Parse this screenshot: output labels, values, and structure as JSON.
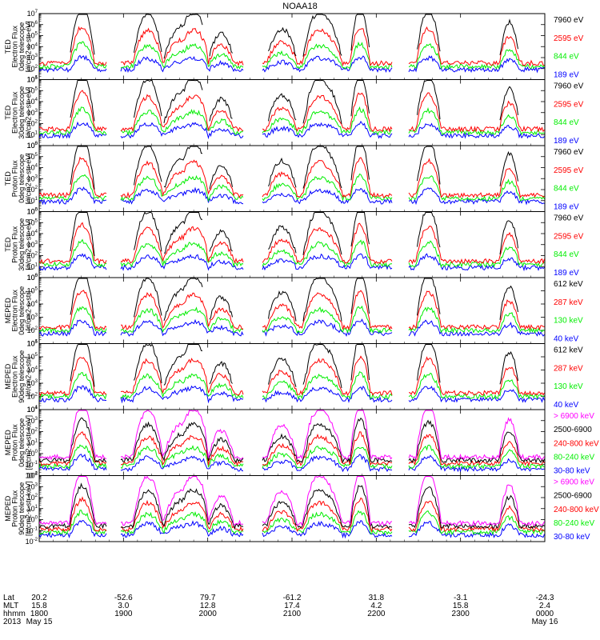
{
  "title": "NOAA18",
  "colors": {
    "black": "#000000",
    "red": "#ff0000",
    "green": "#00ee00",
    "blue": "#0000ff",
    "magenta": "#ff00ff"
  },
  "chart_data": [
    {
      "type": "line",
      "panel": 1,
      "ylabel": [
        "TED",
        "Electron Flux",
        "0deg telescope",
        "[#/cm2-s-str-eV]"
      ],
      "ylog": true,
      "ylim_exp": [
        1,
        7
      ],
      "series": [
        {
          "name": "7960 eV",
          "color": "#000000"
        },
        {
          "name": "2595 eV",
          "color": "#ff0000"
        },
        {
          "name": "844 eV",
          "color": "#00ee00"
        },
        {
          "name": "189 eV",
          "color": "#0000ff"
        }
      ]
    },
    {
      "type": "line",
      "panel": 2,
      "ylabel": [
        "TED",
        "Electron Flux",
        "30deg telescope",
        "[#/cm2-s-str-eV]"
      ],
      "ylog": true,
      "ylim_exp": [
        0,
        6
      ],
      "series": [
        {
          "name": "7960 eV",
          "color": "#000000"
        },
        {
          "name": "2595 eV",
          "color": "#ff0000"
        },
        {
          "name": "844 eV",
          "color": "#00ee00"
        },
        {
          "name": "189 eV",
          "color": "#0000ff"
        }
      ]
    },
    {
      "type": "line",
      "panel": 3,
      "ylabel": [
        "TED",
        "Proton Flux",
        "0deg telescope",
        "[#/cm2-s-str-eV]"
      ],
      "ylog": true,
      "ylim_exp": [
        0,
        6
      ],
      "series": [
        {
          "name": "7960 eV",
          "color": "#000000"
        },
        {
          "name": "2595 eV",
          "color": "#ff0000"
        },
        {
          "name": "844 eV",
          "color": "#00ee00"
        },
        {
          "name": "189 eV",
          "color": "#0000ff"
        }
      ]
    },
    {
      "type": "line",
      "panel": 4,
      "ylabel": [
        "TED",
        "Proton Flux",
        "30deg telescope",
        "[#/cm2-s-str-eV]"
      ],
      "ylog": true,
      "ylim_exp": [
        0,
        6
      ],
      "series": [
        {
          "name": "7960 eV",
          "color": "#000000"
        },
        {
          "name": "2595 eV",
          "color": "#ff0000"
        },
        {
          "name": "844 eV",
          "color": "#00ee00"
        },
        {
          "name": "189 eV",
          "color": "#0000ff"
        }
      ]
    },
    {
      "type": "line",
      "panel": 5,
      "ylabel": [
        "MEPED",
        "Electron Flux",
        "0deg telescope",
        "[#/cm2-s-str]"
      ],
      "ylog": true,
      "ylim_exp": [
        1,
        6
      ],
      "series": [
        {
          "name": "612 keV",
          "color": "#000000"
        },
        {
          "name": "287 keV",
          "color": "#ff0000"
        },
        {
          "name": "130 keV",
          "color": "#00ee00"
        },
        {
          "name": "40 keV",
          "color": "#0000ff"
        }
      ]
    },
    {
      "type": "line",
      "panel": 6,
      "ylabel": [
        "MEPED",
        "Electron Flux",
        "90deg telescope",
        "[#/cm2-s-str]"
      ],
      "ylog": true,
      "ylim_exp": [
        1,
        6
      ],
      "series": [
        {
          "name": "612 keV",
          "color": "#000000"
        },
        {
          "name": "287 keV",
          "color": "#ff0000"
        },
        {
          "name": "130 keV",
          "color": "#00ee00"
        },
        {
          "name": "40 keV",
          "color": "#0000ff"
        }
      ]
    },
    {
      "type": "line",
      "panel": 7,
      "ylabel": [
        "MEPED",
        "Proton Flux",
        "0deg telescope",
        "[#/cm2-s-str-keV]"
      ],
      "ylog": true,
      "ylim_exp": [
        -2,
        4
      ],
      "series": [
        {
          "name": "> 6900 keV",
          "color": "#ff00ff"
        },
        {
          "name": "2500-6900",
          "color": "#000000"
        },
        {
          "name": "240-800 keV",
          "color": "#ff0000"
        },
        {
          "name": "80-240 keV",
          "color": "#00ee00"
        },
        {
          "name": "30-80 keV",
          "color": "#0000ff"
        }
      ]
    },
    {
      "type": "line",
      "panel": 8,
      "ylabel": [
        "MEPED",
        "Proton Flux",
        "90deg telescope",
        "[#/cm2-s-str-keV]"
      ],
      "ylog": true,
      "ylim_exp": [
        -2,
        4
      ],
      "series": [
        {
          "name": "> 6900 keV",
          "color": "#ff00ff"
        },
        {
          "name": "2500-6900",
          "color": "#000000"
        },
        {
          "name": "240-800 keV",
          "color": "#ff0000"
        },
        {
          "name": "80-240 keV",
          "color": "#00ee00"
        },
        {
          "name": "30-80 keV",
          "color": "#0000ff"
        }
      ]
    }
  ],
  "footer": {
    "row_labels": [
      "Lat",
      "MLT",
      "hhmm",
      "2013"
    ],
    "lat": [
      "20.2",
      "-52.6",
      "79.7",
      "-61.2",
      "31.8",
      "-3.1",
      "-24.3"
    ],
    "mlt": [
      "15.8",
      "3.0",
      "12.8",
      "17.4",
      "4.2",
      "15.8",
      "2.4"
    ],
    "hhmm": [
      "1800",
      "1900",
      "2000",
      "2100",
      "2200",
      "2300",
      "0000"
    ],
    "date_start": "May 15",
    "date_end": "May 16"
  }
}
